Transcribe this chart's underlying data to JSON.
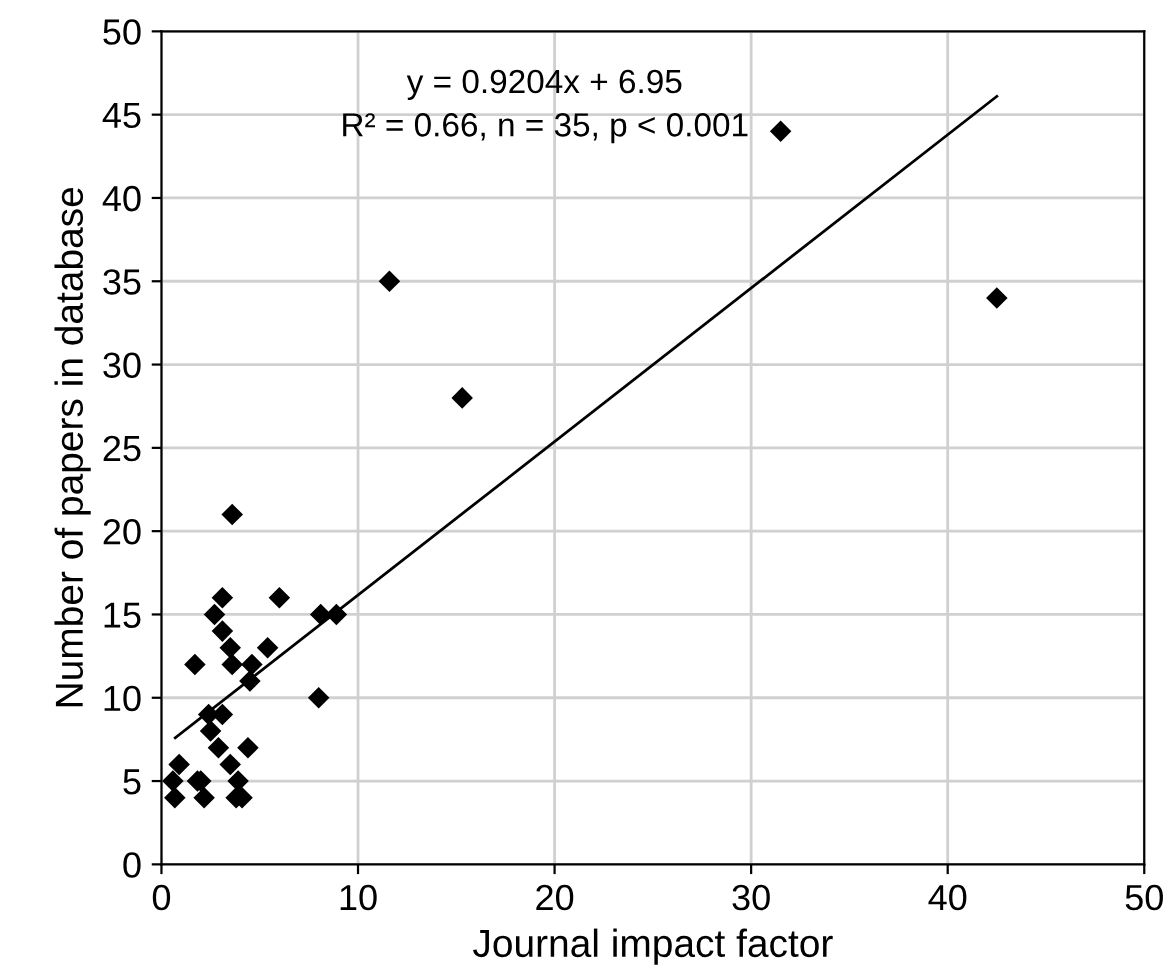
{
  "chart_data": {
    "type": "scatter",
    "xlabel": "Journal impact factor",
    "ylabel": "Number of papers in database",
    "xlim": [
      0,
      50
    ],
    "ylim": [
      0,
      50
    ],
    "xticks": [
      0,
      10,
      20,
      30,
      40,
      50
    ],
    "yticks": [
      0,
      5,
      10,
      15,
      20,
      25,
      30,
      35,
      40,
      45,
      50
    ],
    "grid": true,
    "marker": "diamond",
    "annotations": [
      "y = 0.9204x + 6.95",
      "R² = 0.66, n = 35, p < 0.001"
    ],
    "series": [
      {
        "color": "#000000",
        "x": [
          0.68,
          0.58,
          0.9,
          1.83,
          2.0,
          2.17,
          1.7,
          2.9,
          2.5,
          2.4,
          3.1,
          3.5,
          3.9,
          3.8,
          4.1,
          4.4,
          2.7,
          3.1,
          3.1,
          3.5,
          3.6,
          4.6,
          4.5,
          5.4,
          6.0,
          3.6,
          8.1,
          8.9,
          8.0,
          11.6,
          15.3,
          31.5,
          42.5
        ],
        "values": [
          4,
          5,
          6,
          5,
          5,
          4,
          12,
          7,
          8,
          9,
          9,
          6,
          5,
          4,
          4,
          7,
          15,
          16,
          14,
          13,
          12,
          12,
          11,
          13,
          16,
          21,
          15,
          15,
          10,
          35,
          28,
          44,
          34
        ]
      },
      {
        "type": "line",
        "color": "#000000",
        "marker": "none",
        "x": [
          0.7,
          42.5
        ],
        "values": [
          7.6,
          46.1
        ]
      }
    ]
  }
}
